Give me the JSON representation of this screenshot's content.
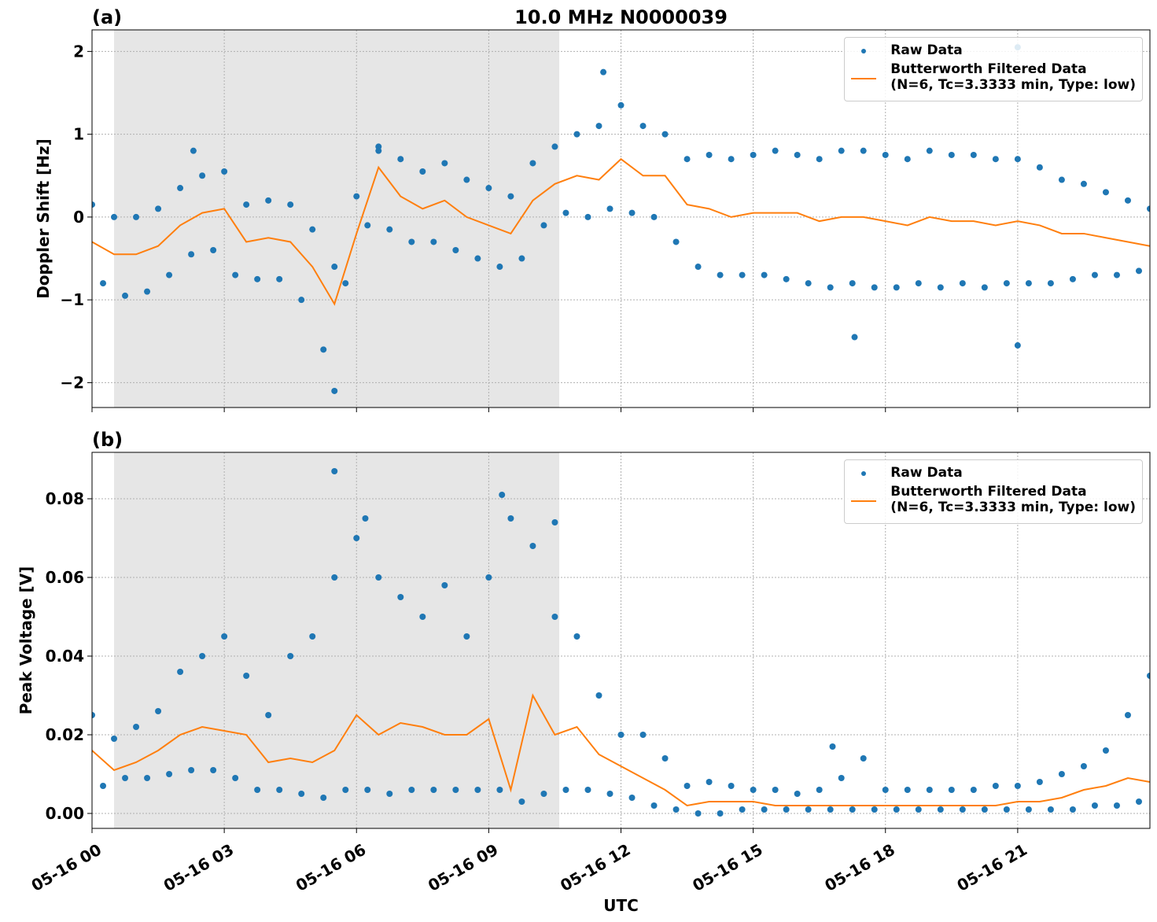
{
  "chart_data": [
    {
      "type": "scatter",
      "title": "10.0 MHz N0000039",
      "panel_label": "(a)",
      "y_label": "Doppler Shift [Hz]",
      "xlim": [
        0,
        24
      ],
      "ylim": [
        -2.3,
        2.26
      ],
      "xticks": [
        0,
        3,
        6,
        9,
        12,
        15,
        18,
        21
      ],
      "show_xtick_labels": false,
      "yticks": [
        {
          "value": -2,
          "label": "−2"
        },
        {
          "value": -1,
          "label": "−1"
        },
        0,
        1,
        2
      ],
      "grid": true,
      "shaded_xspan": [
        0.5,
        10.6
      ],
      "legend": "upper right",
      "series": [
        {
          "name": "Raw Data",
          "style": "points",
          "color": "#1f77b4",
          "x": [
            0,
            0.5,
            1,
            1.5,
            2,
            2.5,
            3,
            3.5,
            4,
            4.5,
            5,
            5.5,
            6,
            6.5,
            7,
            7.5,
            8,
            8.5,
            9,
            9.5,
            10,
            10.5,
            11,
            11.5,
            12,
            12.5,
            13,
            13.5,
            14,
            14.5,
            15,
            15.5,
            16,
            16.5,
            17,
            17.5,
            18,
            18.5,
            19,
            19.5,
            20,
            20.5,
            21,
            21.5,
            22,
            22.5,
            23,
            23.5,
            24,
            0.25,
            0.75,
            1.25,
            1.75,
            2.25,
            2.75,
            3.25,
            3.75,
            4.25,
            4.75,
            5.25,
            5.75,
            6.25,
            6.75,
            7.25,
            7.75,
            8.25,
            8.75,
            9.25,
            9.75,
            10.25,
            10.75,
            11.25,
            11.75,
            12.25,
            12.75,
            13.25,
            13.75,
            14.25,
            14.75,
            15.25,
            15.75,
            16.25,
            16.75,
            17.25,
            17.75,
            18.25,
            18.75,
            19.25,
            19.75,
            20.25,
            20.75,
            21.25,
            21.75,
            22.25,
            22.75,
            23.25,
            23.75,
            5.5,
            11.6,
            21,
            21,
            17.3,
            2.3,
            6.5
          ],
          "values": [
            0.15,
            0,
            0,
            0.1,
            0.35,
            0.5,
            0.55,
            0.15,
            0.2,
            0.15,
            -0.15,
            -0.6,
            0.25,
            0.8,
            0.7,
            0.55,
            0.65,
            0.45,
            0.35,
            0.25,
            0.65,
            0.85,
            1,
            1.1,
            1.35,
            1.1,
            1,
            0.7,
            0.75,
            0.7,
            0.75,
            0.8,
            0.75,
            0.7,
            0.8,
            0.8,
            0.75,
            0.7,
            0.8,
            0.75,
            0.75,
            0.7,
            0.7,
            0.6,
            0.45,
            0.4,
            0.3,
            0.2,
            0.1,
            -0.8,
            -0.95,
            -0.9,
            -0.7,
            -0.45,
            -0.4,
            -0.7,
            -0.75,
            -0.75,
            -1,
            -1.6,
            -0.8,
            -0.1,
            -0.15,
            -0.3,
            -0.3,
            -0.4,
            -0.5,
            -0.6,
            -0.5,
            -0.1,
            0.05,
            0,
            0.1,
            0.05,
            0,
            -0.3,
            -0.6,
            -0.7,
            -0.7,
            -0.7,
            -0.75,
            -0.8,
            -0.85,
            -0.8,
            -0.85,
            -0.85,
            -0.8,
            -0.85,
            -0.8,
            -0.85,
            -0.8,
            -0.8,
            -0.8,
            -0.75,
            -0.7,
            -0.7,
            -0.65,
            -2.1,
            1.75,
            2.05,
            -1.55,
            -1.45,
            0.8,
            0.85
          ]
        },
        {
          "name": "Butterworth Filtered Data\n(N=6, Tc=3.3333 min, Type: low)",
          "style": "line",
          "color": "#ff7f0e",
          "x": [
            0,
            0.5,
            1,
            1.5,
            2,
            2.5,
            3,
            3.5,
            4,
            4.5,
            5,
            5.5,
            6,
            6.5,
            7,
            7.5,
            8,
            8.5,
            9,
            9.5,
            10,
            10.5,
            11,
            11.5,
            12,
            12.5,
            13,
            13.5,
            14,
            14.5,
            15,
            15.5,
            16,
            16.5,
            17,
            17.5,
            18,
            18.5,
            19,
            19.5,
            20,
            20.5,
            21,
            21.5,
            22,
            22.5,
            23,
            23.5,
            24
          ],
          "values": [
            -0.3,
            -0.45,
            -0.45,
            -0.35,
            -0.1,
            0.05,
            0.1,
            -0.3,
            -0.25,
            -0.3,
            -0.6,
            -1.05,
            -0.2,
            0.6,
            0.25,
            0.1,
            0.2,
            0,
            -0.1,
            -0.2,
            0.2,
            0.4,
            0.5,
            0.45,
            0.7,
            0.5,
            0.5,
            0.15,
            0.1,
            0,
            0.05,
            0.05,
            0.05,
            -0.05,
            0,
            0,
            -0.05,
            -0.1,
            0,
            -0.05,
            -0.05,
            -0.1,
            -0.05,
            -0.1,
            -0.2,
            -0.2,
            -0.25,
            -0.3,
            -0.35
          ]
        }
      ]
    },
    {
      "type": "scatter",
      "panel_label": "(b)",
      "y_label": "Peak Voltage [V]",
      "x_label": "UTC",
      "xlim": [
        0,
        24
      ],
      "ylim": [
        -0.0038,
        0.0918
      ],
      "show_xtick_labels": true,
      "xticks": [
        {
          "value": 0,
          "label": "05-16 00"
        },
        {
          "value": 3,
          "label": "05-16 03"
        },
        {
          "value": 6,
          "label": "05-16 06"
        },
        {
          "value": 9,
          "label": "05-16 09"
        },
        {
          "value": 12,
          "label": "05-16 12"
        },
        {
          "value": 15,
          "label": "05-16 15"
        },
        {
          "value": 18,
          "label": "05-16 18"
        },
        {
          "value": 21,
          "label": "05-16 21"
        }
      ],
      "yticks": [
        {
          "value": 0,
          "label": "0.00"
        },
        {
          "value": 0.02,
          "label": "0.02"
        },
        {
          "value": 0.04,
          "label": "0.04"
        },
        {
          "value": 0.06,
          "label": "0.06"
        },
        {
          "value": 0.08,
          "label": "0.08"
        }
      ],
      "grid": true,
      "shaded_xspan": [
        0.5,
        10.6
      ],
      "legend": "upper right",
      "series": [
        {
          "name": "Raw Data",
          "style": "points",
          "color": "#1f77b4",
          "x": [
            0,
            0.5,
            1,
            1.5,
            2,
            2.5,
            3,
            3.5,
            4,
            4.5,
            5,
            5.5,
            6,
            6.5,
            7,
            7.5,
            8,
            8.5,
            9,
            9.5,
            10,
            10.5,
            11,
            11.5,
            12,
            12.5,
            13,
            13.5,
            14,
            14.5,
            15,
            15.5,
            16,
            16.5,
            17,
            17.5,
            18,
            18.5,
            19,
            19.5,
            20,
            20.5,
            21,
            21.5,
            22,
            22.5,
            23,
            23.5,
            24,
            0.25,
            0.75,
            1.25,
            1.75,
            2.25,
            2.75,
            3.25,
            3.75,
            4.25,
            4.75,
            5.25,
            5.75,
            6.25,
            6.75,
            7.25,
            7.75,
            8.25,
            8.75,
            9.25,
            9.75,
            10.25,
            10.75,
            11.25,
            11.75,
            12.25,
            12.75,
            13.25,
            13.75,
            14.25,
            14.75,
            15.25,
            15.75,
            16.25,
            16.75,
            17.25,
            17.75,
            18.25,
            18.75,
            19.25,
            19.75,
            20.25,
            20.75,
            21.25,
            21.75,
            22.25,
            22.75,
            23.25,
            23.75,
            5.5,
            9.3,
            10.5,
            6.2,
            16.8
          ],
          "values": [
            0.025,
            0.019,
            0.022,
            0.026,
            0.036,
            0.04,
            0.045,
            0.035,
            0.025,
            0.04,
            0.045,
            0.06,
            0.07,
            0.06,
            0.055,
            0.05,
            0.058,
            0.045,
            0.06,
            0.075,
            0.068,
            0.05,
            0.045,
            0.03,
            0.02,
            0.02,
            0.014,
            0.007,
            0.008,
            0.007,
            0.006,
            0.006,
            0.005,
            0.006,
            0.009,
            0.014,
            0.006,
            0.006,
            0.006,
            0.006,
            0.006,
            0.007,
            0.007,
            0.008,
            0.01,
            0.012,
            0.016,
            0.025,
            0.035,
            0.007,
            0.009,
            0.009,
            0.01,
            0.011,
            0.011,
            0.009,
            0.006,
            0.006,
            0.005,
            0.004,
            0.006,
            0.006,
            0.005,
            0.006,
            0.006,
            0.006,
            0.006,
            0.006,
            0.003,
            0.005,
            0.006,
            0.006,
            0.005,
            0.004,
            0.002,
            0.001,
            0,
            0,
            0.001,
            0.001,
            0.001,
            0.001,
            0.001,
            0.001,
            0.001,
            0.001,
            0.001,
            0.001,
            0.001,
            0.001,
            0.001,
            0.001,
            0.001,
            0.001,
            0.002,
            0.002,
            0.003,
            0.087,
            0.081,
            0.074,
            0.075,
            0.017
          ]
        },
        {
          "name": "Butterworth Filtered Data\n(N=6, Tc=3.3333 min, Type: low)",
          "style": "line",
          "color": "#ff7f0e",
          "x": [
            0,
            0.5,
            1,
            1.5,
            2,
            2.5,
            3,
            3.5,
            4,
            4.5,
            5,
            5.5,
            6,
            6.5,
            7,
            7.5,
            8,
            8.5,
            9,
            9.5,
            10,
            10.5,
            11,
            11.5,
            12,
            12.5,
            13,
            13.5,
            14,
            14.5,
            15,
            15.5,
            16,
            16.5,
            17,
            17.5,
            18,
            18.5,
            19,
            19.5,
            20,
            20.5,
            21,
            21.5,
            22,
            22.5,
            23,
            23.5,
            24
          ],
          "values": [
            0.016,
            0.011,
            0.013,
            0.016,
            0.02,
            0.022,
            0.021,
            0.02,
            0.013,
            0.014,
            0.013,
            0.016,
            0.025,
            0.02,
            0.023,
            0.022,
            0.02,
            0.02,
            0.024,
            0.006,
            0.03,
            0.02,
            0.022,
            0.015,
            0.012,
            0.009,
            0.006,
            0.002,
            0.003,
            0.003,
            0.003,
            0.002,
            0.002,
            0.002,
            0.002,
            0.002,
            0.002,
            0.002,
            0.002,
            0.002,
            0.002,
            0.002,
            0.003,
            0.003,
            0.004,
            0.006,
            0.007,
            0.009,
            0.008
          ]
        }
      ]
    }
  ]
}
